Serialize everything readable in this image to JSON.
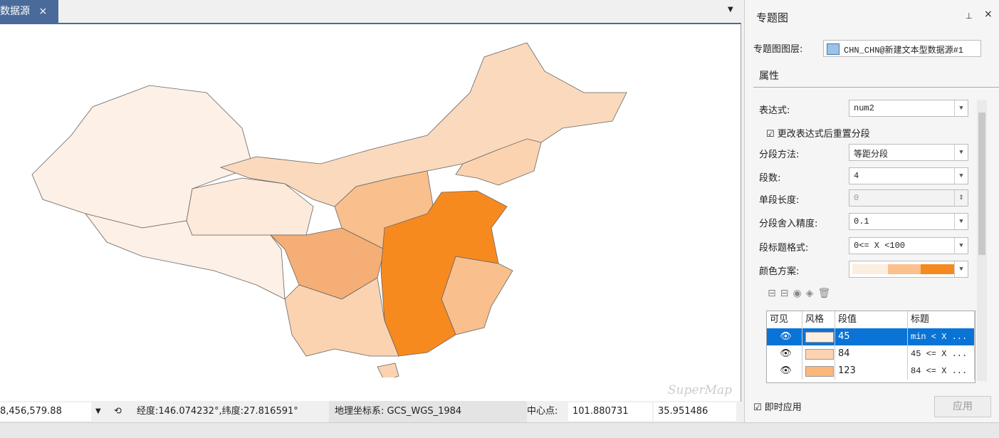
{
  "tab": {
    "title": "数据源",
    "close": "×"
  },
  "panel": {
    "title": "专题图",
    "close": "×",
    "layer": {
      "label": "专题图图层:",
      "value": "CHN_CHN@新建文本型数据源#1"
    },
    "section": "属性",
    "fields": [
      {
        "label": "表达式:",
        "value": "num2"
      },
      {
        "label": "分段方法:",
        "value": "等距分段"
      },
      {
        "label": "段数:",
        "value": "4"
      },
      {
        "label": "单段长度:",
        "value": "0"
      },
      {
        "label": "分段舍入精度:",
        "value": "0.1"
      },
      {
        "label": "段标题格式:",
        "value": "0<= X <100"
      },
      {
        "label": "颜色方案:"
      }
    ],
    "reset_check": "更改表达式后重置分段",
    "table": {
      "headers": [
        "可见",
        "风格",
        "段值",
        "标题"
      ],
      "rows": [
        [
          "45",
          "min < X ..."
        ],
        [
          "84",
          "45 <= X ..."
        ],
        [
          "123",
          "84 <= X ..."
        ]
      ]
    },
    "instant_apply": "即时应用",
    "apply": "应用"
  },
  "status": {
    "scale": "8,456,579.88",
    "coords": "经度:146.074232°,纬度:27.816591°",
    "crs": "地理坐标系: GCS_WGS_1984",
    "center_label": "中心点:",
    "center_x": "101.880731",
    "center_y": "35.951486"
  },
  "watermark": "SuperMap"
}
